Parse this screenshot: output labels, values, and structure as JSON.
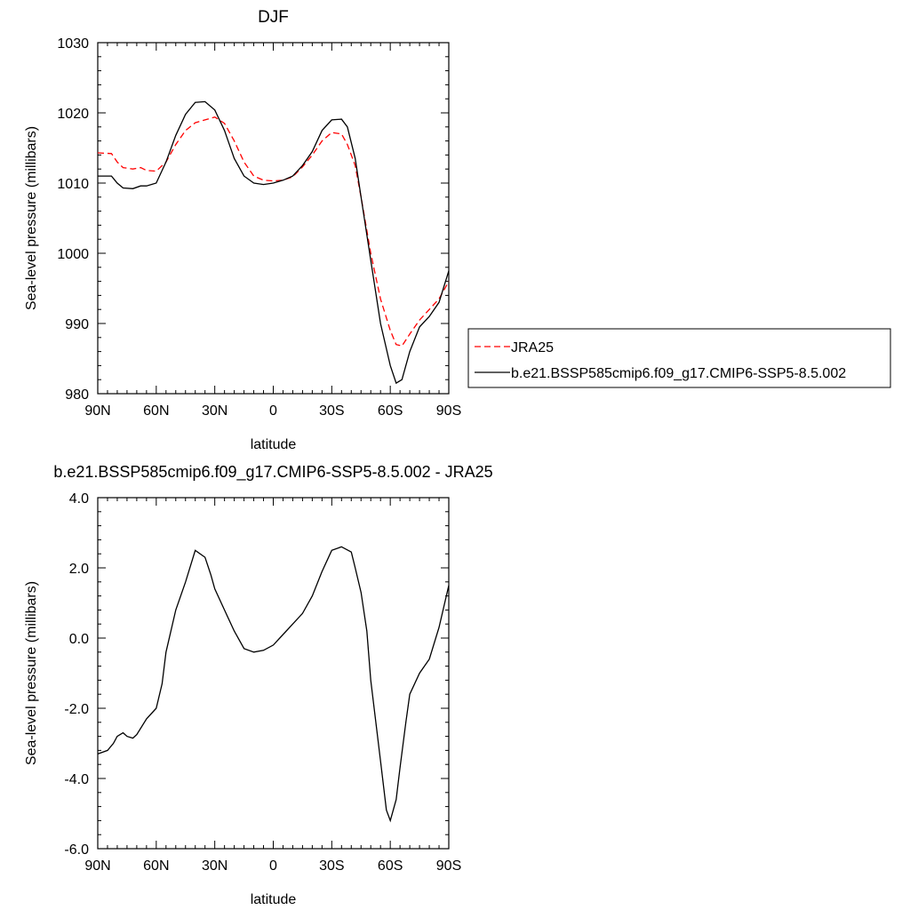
{
  "chart_data": [
    {
      "type": "line",
      "title": "DJF",
      "xlabel": "latitude",
      "ylabel": "Sea-level pressure (millibars)",
      "xlim": [
        -90,
        90
      ],
      "ylim": [
        980,
        1030
      ],
      "xticks": [
        -90,
        -60,
        -30,
        0,
        30,
        60,
        90
      ],
      "xtick_labels": [
        "90N",
        "60N",
        "30N",
        "0",
        "30S",
        "60S",
        "90S"
      ],
      "yticks": [
        980,
        990,
        1000,
        1010,
        1020,
        1030
      ],
      "ytick_labels": [
        "980",
        "990",
        "1000",
        "1010",
        "1020",
        "1030"
      ],
      "legend": "right, outside plot",
      "series": [
        {
          "name": "JRA25",
          "color": "#ff0000",
          "dash": "dashed",
          "x": [
            -90,
            -83,
            -80,
            -77,
            -72,
            -68,
            -65,
            -60,
            -55,
            -50,
            -45,
            -40,
            -35,
            -30,
            -25,
            -20,
            -15,
            -10,
            -5,
            0,
            5,
            10,
            15,
            20,
            25,
            30,
            35,
            38,
            42,
            45,
            50,
            55,
            60,
            63,
            66,
            70,
            75,
            80,
            85,
            90
          ],
          "values": [
            1014.3,
            1014.2,
            1013.0,
            1012.2,
            1012.0,
            1012.2,
            1011.8,
            1011.7,
            1013.0,
            1015.5,
            1017.5,
            1018.6,
            1019.0,
            1019.4,
            1018.5,
            1016.0,
            1013.0,
            1011.0,
            1010.4,
            1010.3,
            1010.4,
            1010.9,
            1012.3,
            1014.0,
            1016.0,
            1017.2,
            1017.0,
            1015.5,
            1012.5,
            1008.0,
            1000.0,
            993.5,
            989.0,
            987.0,
            986.8,
            988.5,
            990.5,
            992.0,
            993.5,
            996.0
          ]
        },
        {
          "name": "b.e21.BSSP585cmip6.f09_g17.CMIP6-SSP5-8.5.002",
          "color": "#000000",
          "dash": "solid",
          "x": [
            -90,
            -83,
            -80,
            -77,
            -72,
            -68,
            -65,
            -60,
            -55,
            -50,
            -45,
            -40,
            -35,
            -30,
            -25,
            -20,
            -15,
            -10,
            -5,
            0,
            5,
            10,
            15,
            20,
            25,
            30,
            35,
            38,
            42,
            45,
            50,
            55,
            60,
            63,
            66,
            70,
            75,
            80,
            85,
            90
          ],
          "values": [
            1011.0,
            1011.0,
            1010.0,
            1009.3,
            1009.2,
            1009.6,
            1009.6,
            1010.0,
            1013.0,
            1016.8,
            1019.8,
            1021.5,
            1021.6,
            1020.4,
            1017.5,
            1013.5,
            1011.0,
            1010.0,
            1009.8,
            1010.0,
            1010.4,
            1011.0,
            1012.5,
            1014.5,
            1017.5,
            1019.0,
            1019.1,
            1018.0,
            1013.5,
            1008.0,
            999.0,
            990.0,
            984.0,
            981.5,
            982.0,
            986.0,
            989.5,
            991.0,
            993.0,
            997.5
          ]
        }
      ]
    },
    {
      "type": "line",
      "title": "b.e21.BSSP585cmip6.f09_g17.CMIP6-SSP5-8.5.002 - JRA25",
      "xlabel": "latitude",
      "ylabel": "Sea-level pressure (millibars)",
      "xlim": [
        -90,
        90
      ],
      "ylim": [
        -6,
        4
      ],
      "xticks": [
        -90,
        -60,
        -30,
        0,
        30,
        60,
        90
      ],
      "xtick_labels": [
        "90N",
        "60N",
        "30N",
        "0",
        "30S",
        "60S",
        "90S"
      ],
      "yticks": [
        -6,
        -4,
        -2,
        0,
        2,
        4
      ],
      "ytick_labels": [
        "-6.0",
        "-4.0",
        "-2.0",
        "0.0",
        "2.0",
        "4.0"
      ],
      "series": [
        {
          "color": "#000000",
          "dash": "solid",
          "x": [
            -90,
            -85,
            -82,
            -80,
            -77,
            -75,
            -72,
            -70,
            -65,
            -60,
            -57,
            -55,
            -50,
            -45,
            -40,
            -35,
            -32,
            -30,
            -25,
            -20,
            -15,
            -10,
            -5,
            0,
            5,
            10,
            15,
            20,
            25,
            30,
            35,
            40,
            42,
            45,
            48,
            50,
            55,
            58,
            60,
            63,
            65,
            68,
            70,
            75,
            80,
            85,
            90
          ],
          "values": [
            -3.3,
            -3.2,
            -3.0,
            -2.8,
            -2.7,
            -2.8,
            -2.85,
            -2.75,
            -2.3,
            -2.0,
            -1.3,
            -0.4,
            0.8,
            1.6,
            2.5,
            2.3,
            1.8,
            1.4,
            0.8,
            0.2,
            -0.3,
            -0.4,
            -0.35,
            -0.2,
            0.1,
            0.4,
            0.7,
            1.2,
            1.9,
            2.5,
            2.6,
            2.45,
            2.0,
            1.3,
            0.2,
            -1.2,
            -3.5,
            -4.9,
            -5.2,
            -4.6,
            -3.7,
            -2.4,
            -1.6,
            -1.0,
            -0.6,
            0.3,
            1.5
          ]
        }
      ]
    }
  ]
}
